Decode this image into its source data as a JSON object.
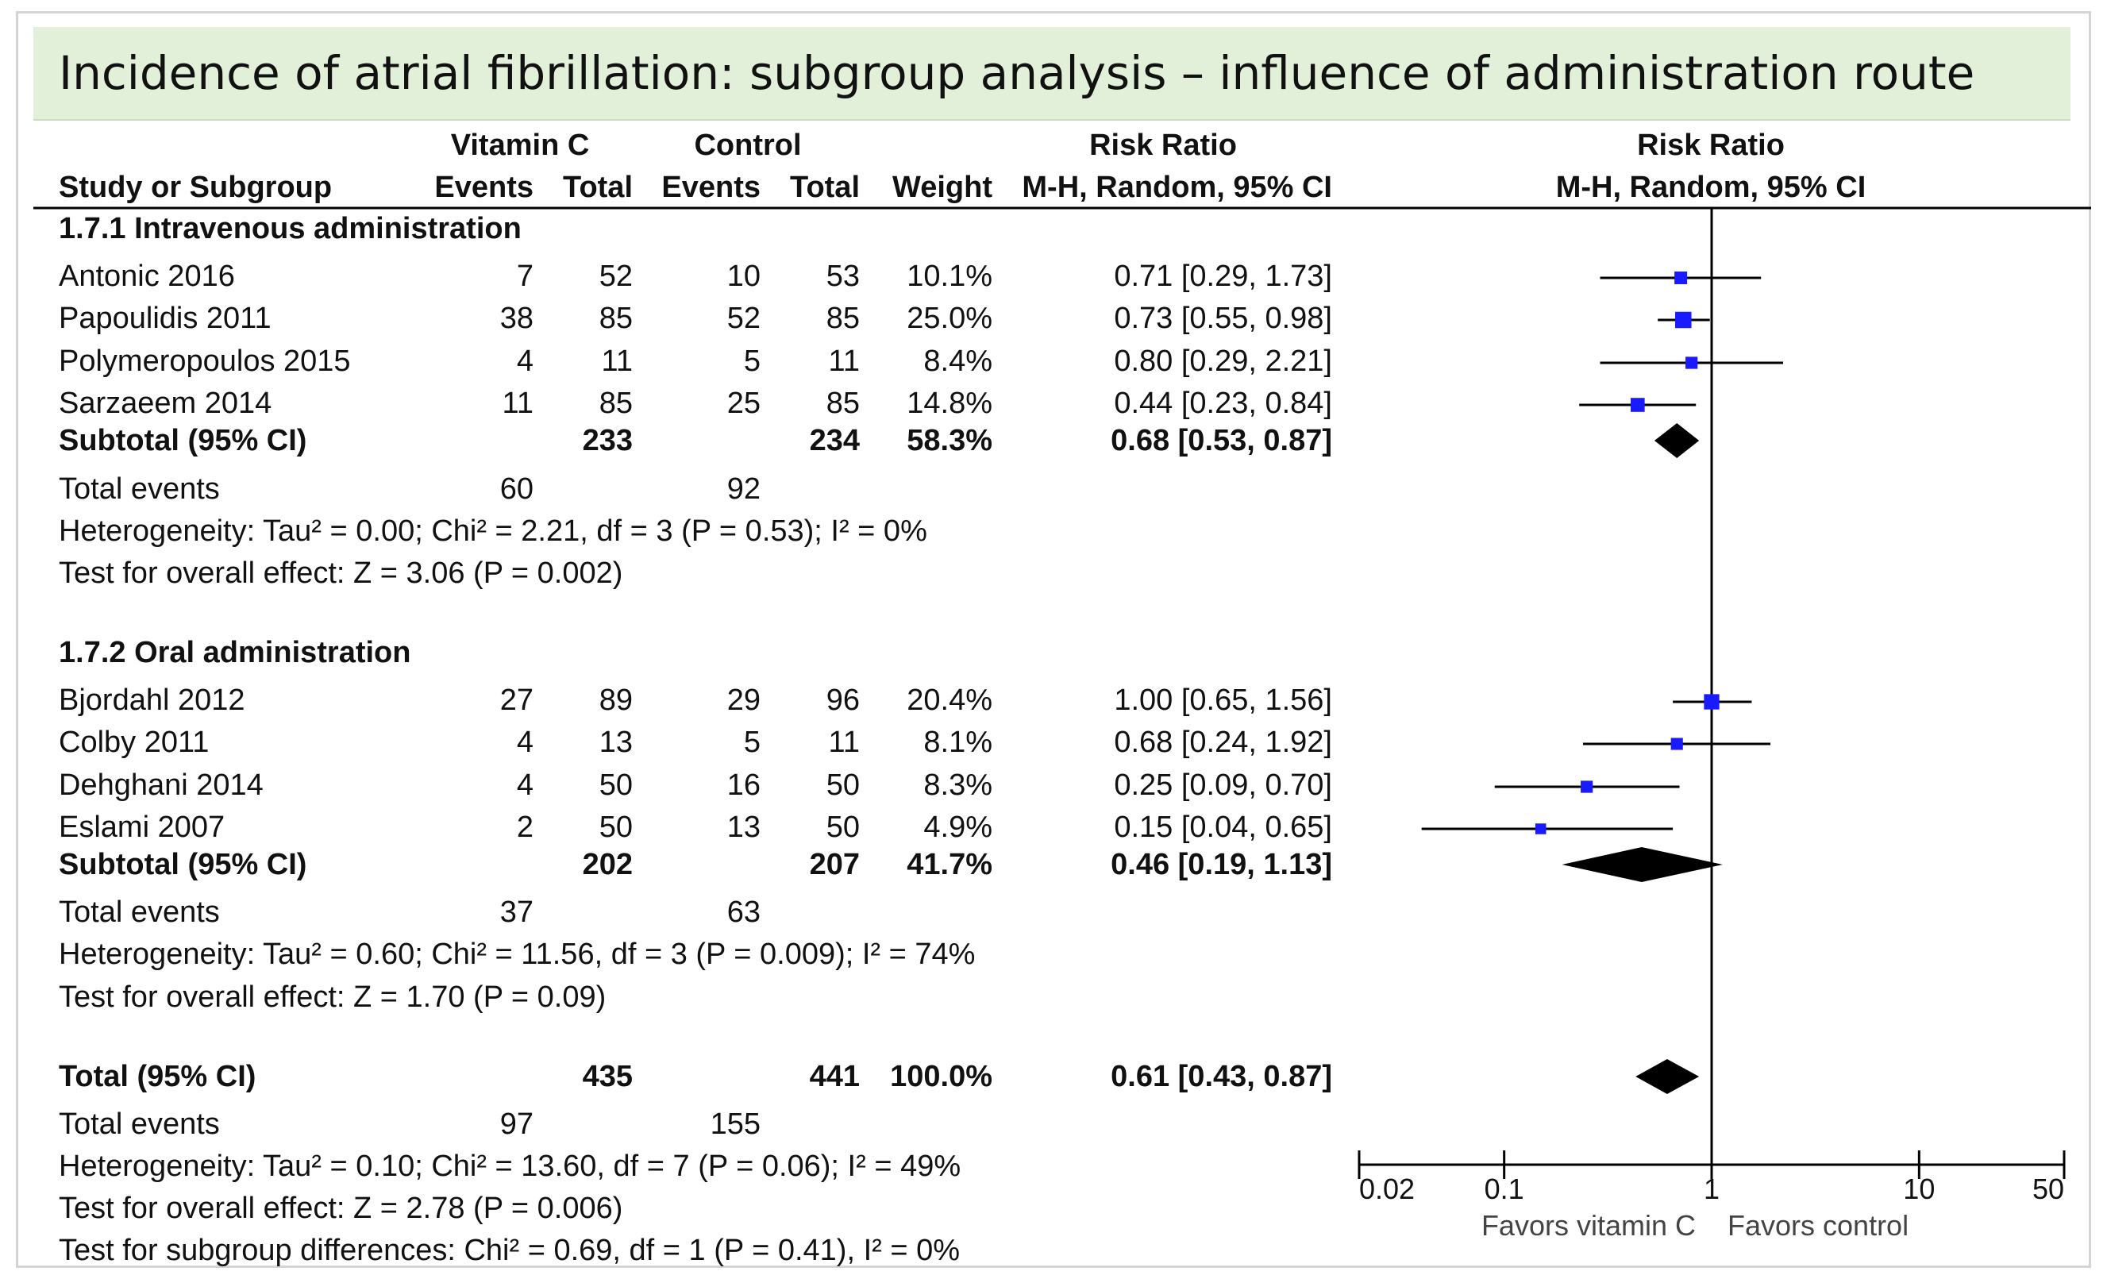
{
  "title": "Incidence of atrial fibrillation: subgroup analysis – influence of administration route",
  "chart_data": {
    "type": "forest",
    "scale": "log",
    "axis": {
      "ticks": [
        0.02,
        0.1,
        1,
        10,
        50
      ],
      "tick_labels": [
        "0.02",
        "0.1",
        "1",
        "10",
        "50"
      ],
      "left_label": "Favors vitamin C",
      "right_label": "Favors control",
      "range": [
        0.02,
        50
      ]
    },
    "headers": {
      "group_vitc": "Vitamin C",
      "group_ctrl": "Control",
      "rr_group": "Risk Ratio",
      "rr_plot_group": "Risk Ratio",
      "study": "Study or Subgroup",
      "events1": "Events",
      "total1": "Total",
      "events2": "Events",
      "total2": "Total",
      "weight": "Weight",
      "method": "M-H, Random, 95% CI",
      "method_plot": "M-H, Random, 95% CI"
    },
    "subgroups": [
      {
        "title": "1.7.1 Intravenous administration",
        "studies": [
          {
            "name": "Antonic 2016",
            "e1": "7",
            "n1": "52",
            "e2": "10",
            "n2": "53",
            "weight": "10.1%",
            "rr_text": "0.71 [0.29, 1.73]",
            "rr": 0.71,
            "lo": 0.29,
            "hi": 1.73,
            "w": 10.1
          },
          {
            "name": "Papoulidis 2011",
            "e1": "38",
            "n1": "85",
            "e2": "52",
            "n2": "85",
            "weight": "25.0%",
            "rr_text": "0.73 [0.55, 0.98]",
            "rr": 0.73,
            "lo": 0.55,
            "hi": 0.98,
            "w": 25.0
          },
          {
            "name": "Polymeropoulos 2015",
            "e1": "4",
            "n1": "11",
            "e2": "5",
            "n2": "11",
            "weight": "8.4%",
            "rr_text": "0.80 [0.29, 2.21]",
            "rr": 0.8,
            "lo": 0.29,
            "hi": 2.21,
            "w": 8.4
          },
          {
            "name": "Sarzaeem 2014",
            "e1": "11",
            "n1": "85",
            "e2": "25",
            "n2": "85",
            "weight": "14.8%",
            "rr_text": "0.44 [0.23, 0.84]",
            "rr": 0.44,
            "lo": 0.23,
            "hi": 0.84,
            "w": 14.8
          }
        ],
        "subtotal": {
          "label": "Subtotal (95% CI)",
          "n1": "233",
          "n2": "234",
          "weight": "58.3%",
          "rr_text": "0.68 [0.53, 0.87]",
          "rr": 0.68,
          "lo": 0.53,
          "hi": 0.87
        },
        "events": {
          "label": "Total events",
          "e1": "60",
          "e2": "92"
        },
        "heterogeneity": "Heterogeneity: Tau² = 0.00; Chi² = 2.21, df = 3 (P = 0.53); I² = 0%",
        "overall": "Test for overall effect: Z = 3.06 (P = 0.002)"
      },
      {
        "title": "1.7.2 Oral administration",
        "studies": [
          {
            "name": "Bjordahl 2012",
            "e1": "27",
            "n1": "89",
            "e2": "29",
            "n2": "96",
            "weight": "20.4%",
            "rr_text": "1.00 [0.65, 1.56]",
            "rr": 1.0,
            "lo": 0.65,
            "hi": 1.56,
            "w": 20.4
          },
          {
            "name": "Colby 2011",
            "e1": "4",
            "n1": "13",
            "e2": "5",
            "n2": "11",
            "weight": "8.1%",
            "rr_text": "0.68 [0.24, 1.92]",
            "rr": 0.68,
            "lo": 0.24,
            "hi": 1.92,
            "w": 8.1
          },
          {
            "name": "Dehghani 2014",
            "e1": "4",
            "n1": "50",
            "e2": "16",
            "n2": "50",
            "weight": "8.3%",
            "rr_text": "0.25 [0.09, 0.70]",
            "rr": 0.25,
            "lo": 0.09,
            "hi": 0.7,
            "w": 8.3
          },
          {
            "name": "Eslami 2007",
            "e1": "2",
            "n1": "50",
            "e2": "13",
            "n2": "50",
            "weight": "4.9%",
            "rr_text": "0.15 [0.04, 0.65]",
            "rr": 0.15,
            "lo": 0.04,
            "hi": 0.65,
            "w": 4.9
          }
        ],
        "subtotal": {
          "label": "Subtotal (95% CI)",
          "n1": "202",
          "n2": "207",
          "weight": "41.7%",
          "rr_text": "0.46 [0.19, 1.13]",
          "rr": 0.46,
          "lo": 0.19,
          "hi": 1.13
        },
        "events": {
          "label": "Total events",
          "e1": "37",
          "e2": "63"
        },
        "heterogeneity": "Heterogeneity: Tau² = 0.60; Chi² = 11.56, df = 3 (P = 0.009); I² = 74%",
        "overall": "Test for overall effect: Z = 1.70 (P = 0.09)"
      }
    ],
    "total": {
      "label": "Total (95% CI)",
      "n1": "435",
      "n2": "441",
      "weight": "100.0%",
      "rr_text": "0.61 [0.43, 0.87]",
      "rr": 0.61,
      "lo": 0.43,
      "hi": 0.87
    },
    "total_events": {
      "label": "Total events",
      "e1": "97",
      "e2": "155"
    },
    "total_heterogeneity": "Heterogeneity: Tau² = 0.10; Chi² = 13.60, df = 7 (P = 0.06); I² = 49%",
    "total_overall": "Test for overall effect: Z = 2.78 (P = 0.006)",
    "subgroup_differences": "Test for subgroup differences: Chi² = 0.69, df = 1 (P = 0.41), I² = 0%",
    "colors": {
      "square": "#1a1aff",
      "diamond": "#000000",
      "line": "#000000"
    }
  }
}
